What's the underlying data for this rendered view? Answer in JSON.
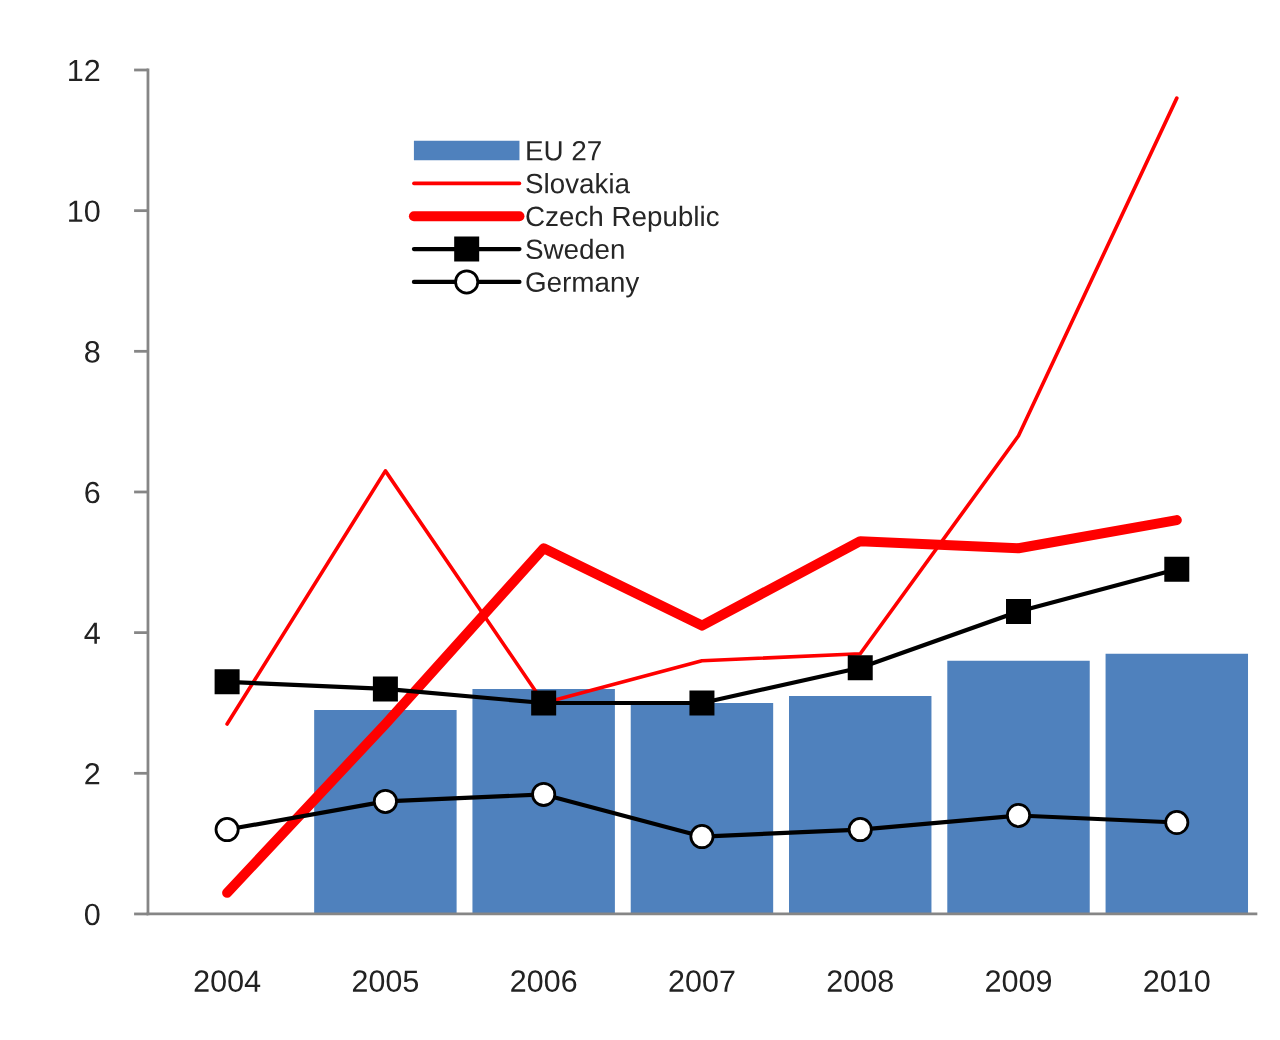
{
  "chart_data": {
    "type": "bar",
    "categories": [
      "2004",
      "2005",
      "2006",
      "2007",
      "2008",
      "2009",
      "2010"
    ],
    "series": [
      {
        "name": "EU 27",
        "color": "#4f81bd",
        "values": [
          null,
          2.9,
          3.2,
          3.0,
          3.1,
          3.6,
          3.7
        ]
      },
      {
        "name": "Slovakia",
        "type": "line",
        "color": "#ff0000",
        "marker": "none",
        "values": [
          2.7,
          6.3,
          3.0,
          3.6,
          3.7,
          6.8,
          11.6
        ]
      },
      {
        "name": "Czech Republic",
        "type": "line",
        "color": "#ff0000",
        "marker": "none",
        "values": [
          0.3,
          2.7,
          5.2,
          4.1,
          5.3,
          5.2,
          5.6
        ]
      },
      {
        "name": "Sweden",
        "type": "line",
        "color": "#000000",
        "marker": "square",
        "values": [
          3.3,
          3.2,
          3.0,
          3.0,
          3.5,
          4.3,
          4.9
        ]
      },
      {
        "name": "Germany",
        "type": "line",
        "color": "#000000",
        "marker": "circle",
        "values": [
          1.2,
          1.6,
          1.7,
          1.1,
          1.2,
          1.4,
          1.3
        ]
      }
    ],
    "ylim": [
      0,
      12
    ],
    "yticks": [
      0,
      2,
      4,
      6,
      8,
      10,
      12
    ],
    "grid": false,
    "legend": "top left"
  }
}
